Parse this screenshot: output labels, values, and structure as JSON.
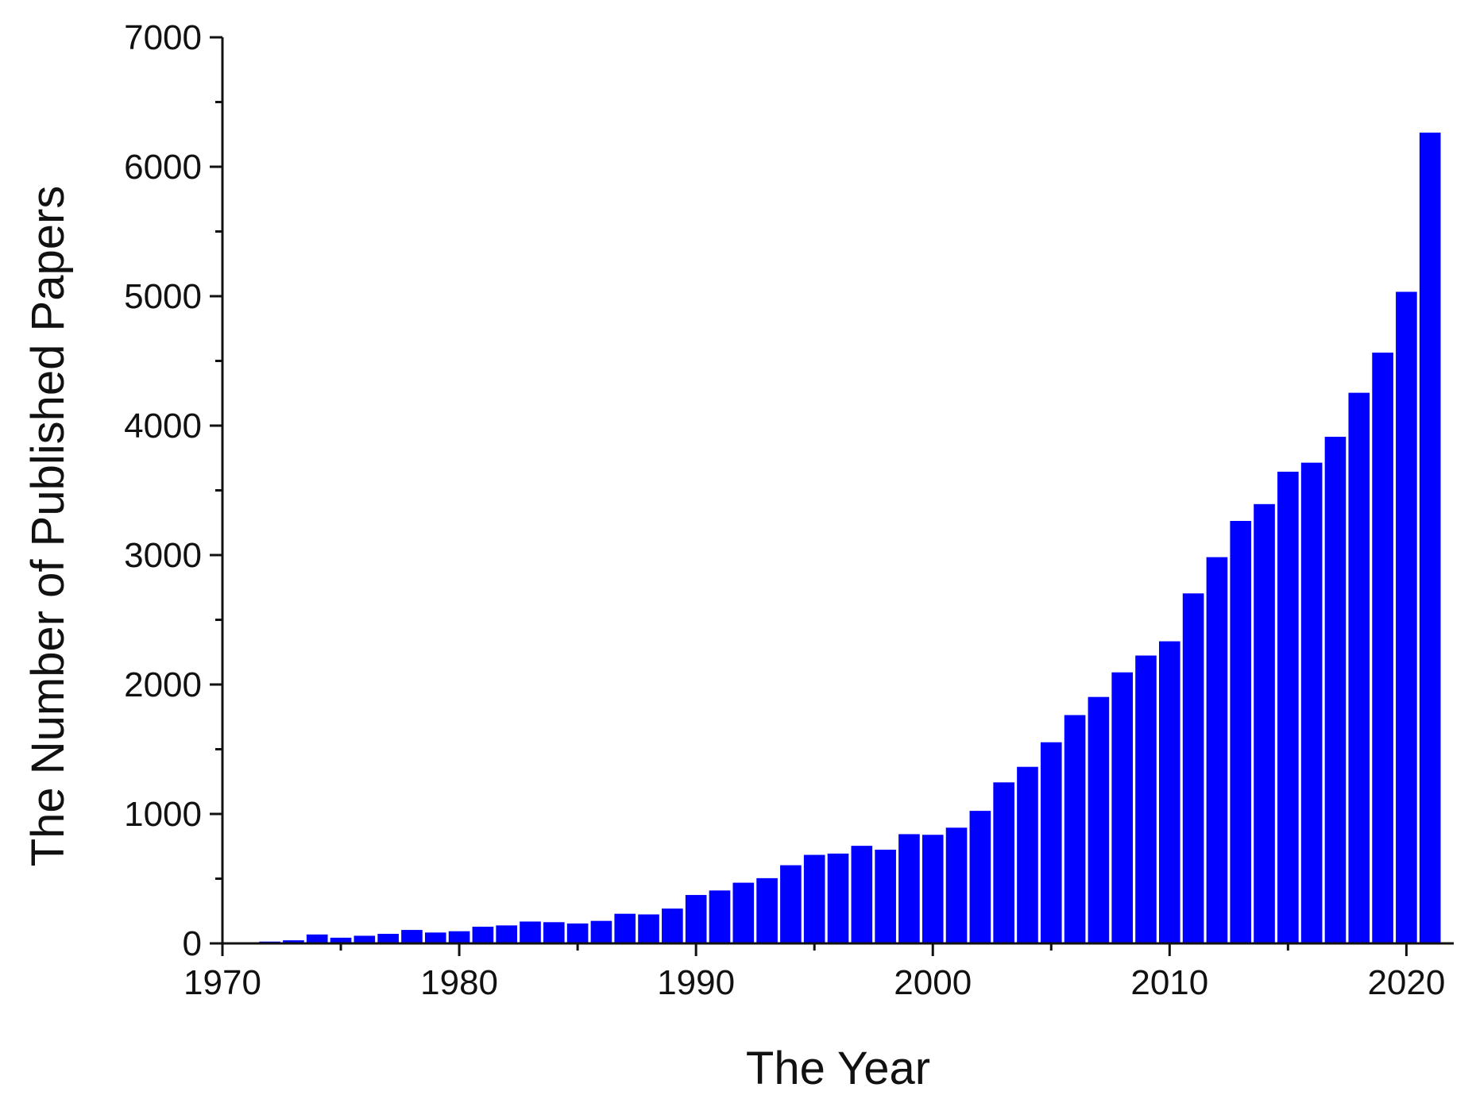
{
  "chart_data": {
    "type": "bar",
    "title": "",
    "xlabel": "The Year",
    "ylabel": "The Number of Published Papers",
    "xlim": [
      1970,
      2022
    ],
    "ylim": [
      0,
      7000
    ],
    "x_ticks": [
      1970,
      1980,
      1990,
      2000,
      2010,
      2020
    ],
    "y_ticks": [
      0,
      1000,
      2000,
      3000,
      4000,
      5000,
      6000,
      7000
    ],
    "grid": false,
    "legend": "none",
    "bar_color": "#0000ff",
    "x": [
      1971,
      1972,
      1973,
      1974,
      1975,
      1976,
      1977,
      1978,
      1979,
      1980,
      1981,
      1982,
      1983,
      1984,
      1985,
      1986,
      1987,
      1988,
      1989,
      1990,
      1991,
      1992,
      1993,
      1994,
      1995,
      1996,
      1997,
      1998,
      1999,
      2000,
      2001,
      2002,
      2003,
      2004,
      2005,
      2006,
      2007,
      2008,
      2009,
      2010,
      2011,
      2012,
      2013,
      2014,
      2015,
      2016,
      2017,
      2018,
      2019,
      2020,
      2021
    ],
    "values": [
      15,
      20,
      30,
      75,
      50,
      65,
      80,
      110,
      90,
      100,
      135,
      145,
      175,
      170,
      160,
      180,
      235,
      230,
      275,
      380,
      415,
      475,
      510,
      610,
      690,
      700,
      760,
      730,
      850,
      845,
      900,
      1030,
      1250,
      1370,
      1560,
      1770,
      1910,
      2100,
      2230,
      2340,
      2710,
      2990,
      3270,
      3400,
      3650,
      3720,
      3920,
      4260,
      4570,
      5040,
      6270
    ]
  }
}
